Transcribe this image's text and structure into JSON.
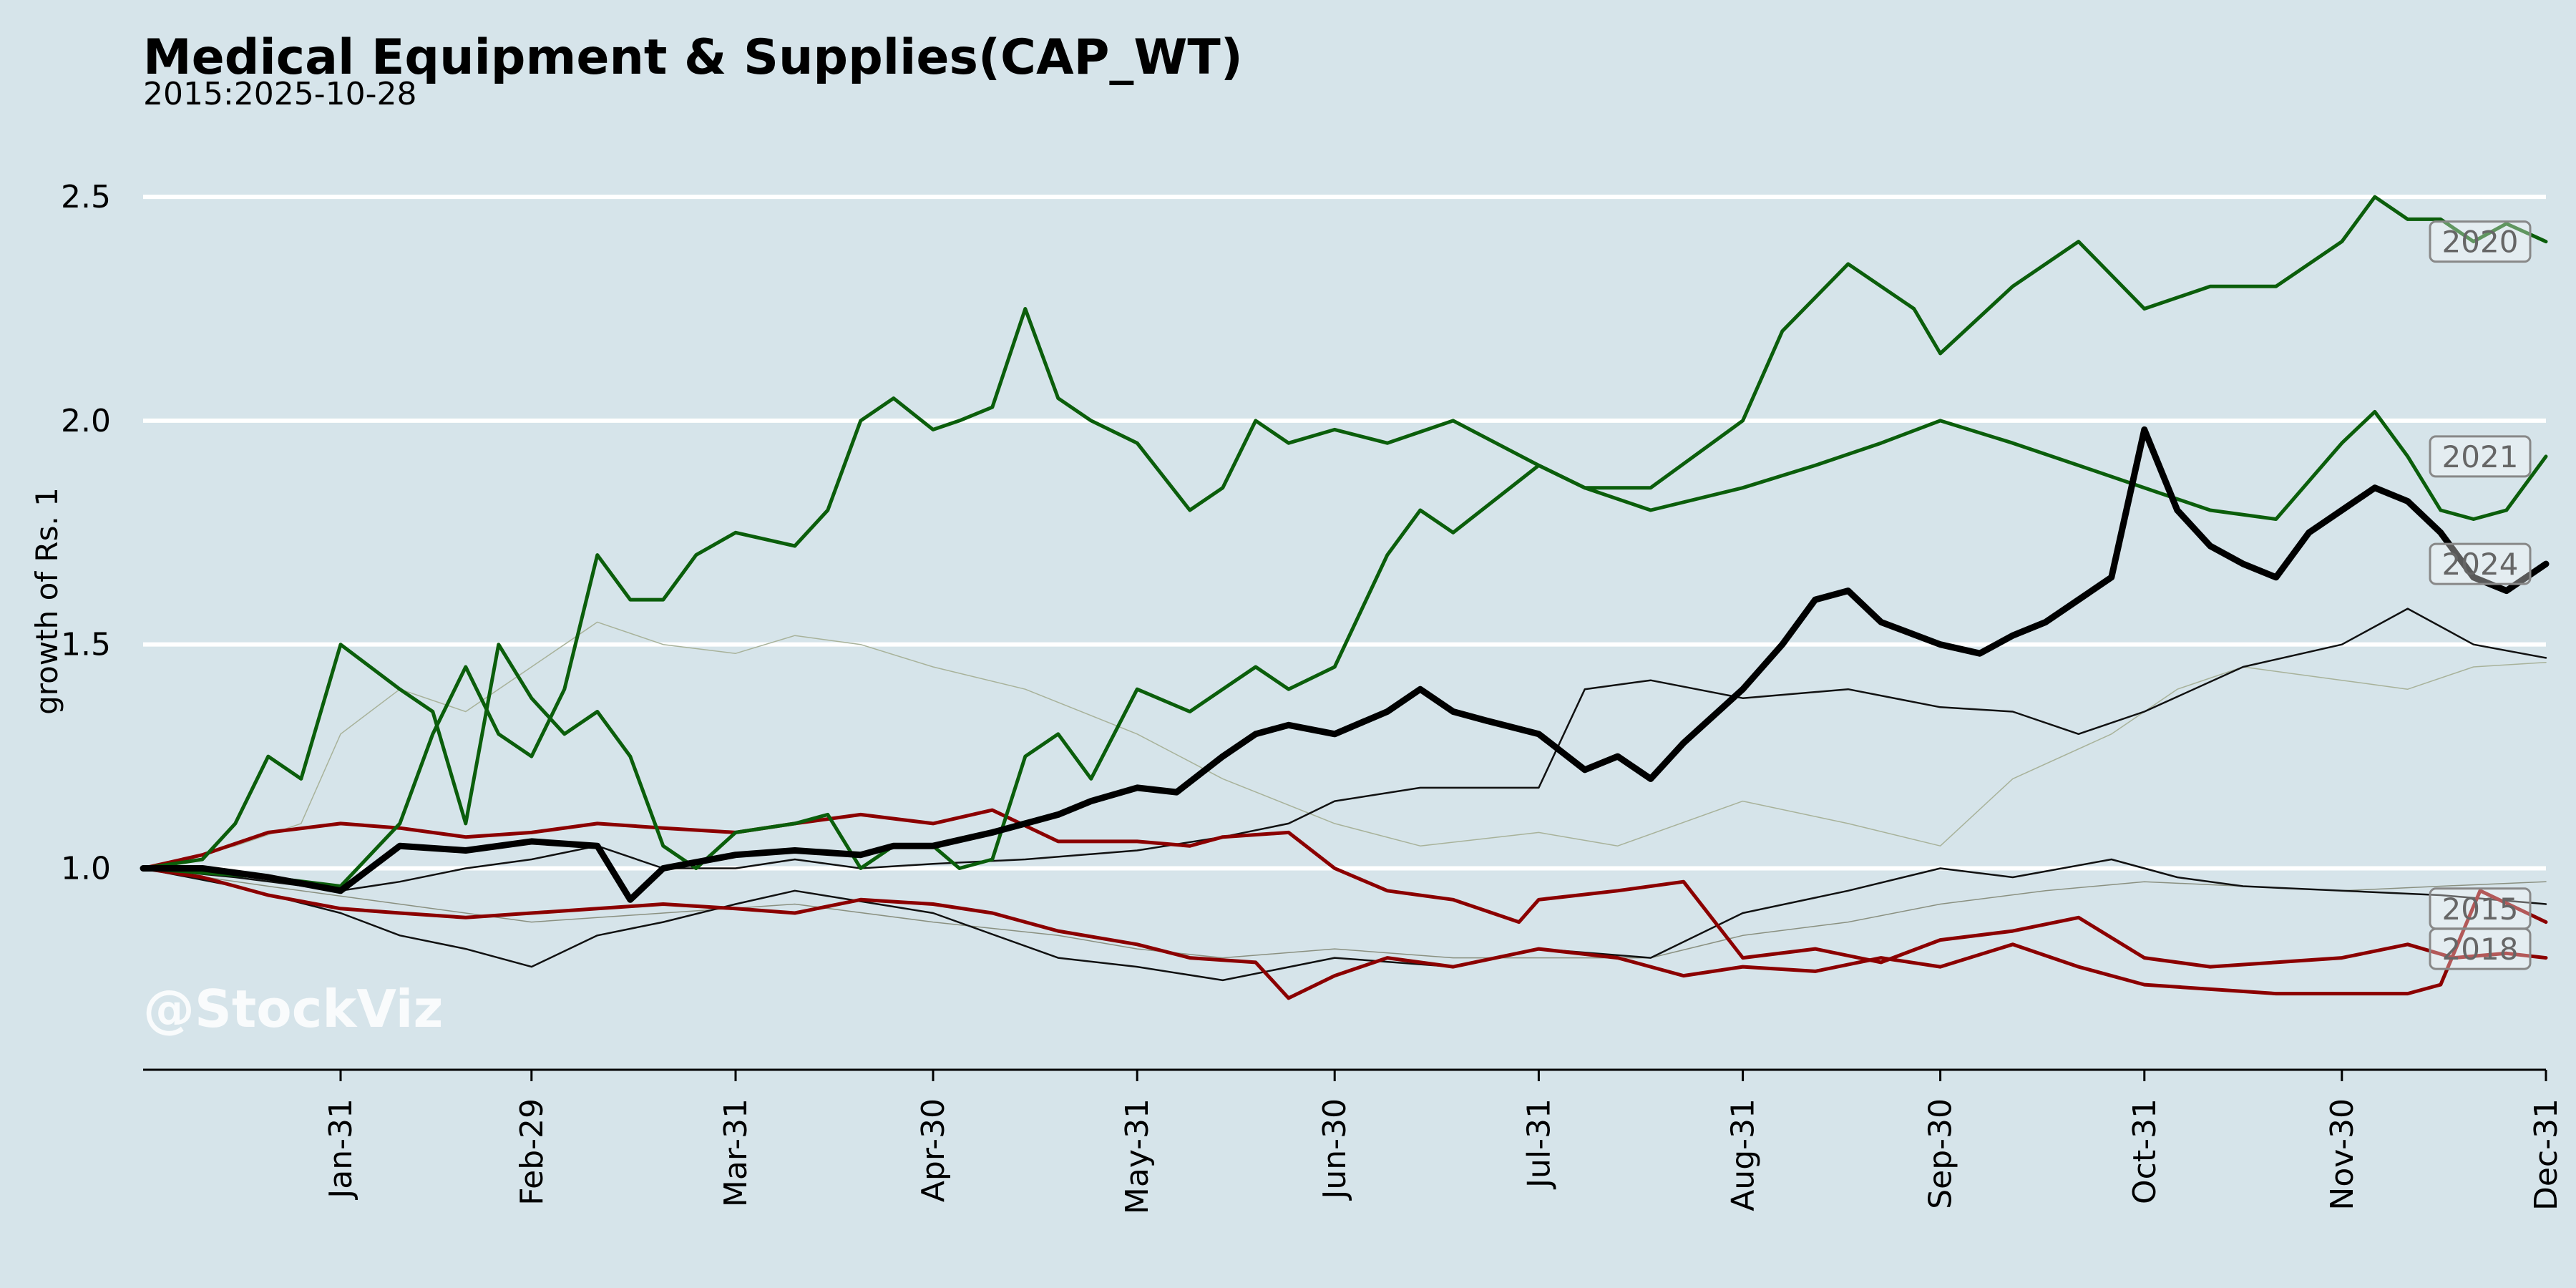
{
  "title": "Medical Equipment & Supplies(CAP_WT)",
  "subtitle": "2015:2025-10-28",
  "watermark": "@StockViz",
  "chart_data": {
    "type": "line",
    "title": "Medical Equipment & Supplies(CAP_WT)",
    "subtitle": "2015:2025-10-28",
    "ylabel": "growth of Rs. 1",
    "xlabel": "",
    "ylim": [
      0.55,
      2.62
    ],
    "yticks": [
      1.0,
      1.5,
      2.0,
      2.5
    ],
    "ytick_labels": [
      "1.0",
      "1.5",
      "2.0",
      "2.5"
    ],
    "xlim": [
      1,
      366
    ],
    "xticks": [
      31,
      60,
      91,
      121,
      152,
      182,
      213,
      244,
      274,
      305,
      335,
      366
    ],
    "xtick_labels": [
      "Jan-31",
      "Feb-29",
      "Mar-31",
      "Apr-30",
      "May-31",
      "Jun-30",
      "Jul-31",
      "Aug-31",
      "Sep-30",
      "Oct-31",
      "Nov-30",
      "Dec-31"
    ],
    "grid": "horizontal",
    "year_labels": [
      {
        "text": "2020",
        "y": 2.4
      },
      {
        "text": "2021",
        "y": 1.92
      },
      {
        "text": "2024",
        "y": 1.68
      },
      {
        "text": "2015",
        "y": 0.91
      },
      {
        "text": "2018",
        "y": 0.82
      }
    ],
    "series": [
      {
        "color": "#a8b29a",
        "width": 1.5,
        "x": [
          1,
          15,
          25,
          31,
          40,
          50,
          60,
          70,
          80,
          91,
          100,
          110,
          121,
          135,
          152,
          165,
          182,
          195,
          213,
          225,
          244,
          260,
          274,
          285,
          300,
          310,
          320,
          335,
          345,
          355,
          366
        ],
        "y": [
          1.0,
          1.05,
          1.1,
          1.3,
          1.4,
          1.35,
          1.45,
          1.55,
          1.5,
          1.48,
          1.52,
          1.5,
          1.45,
          1.4,
          1.3,
          1.2,
          1.1,
          1.05,
          1.08,
          1.05,
          1.15,
          1.1,
          1.05,
          1.2,
          1.3,
          1.4,
          1.45,
          1.42,
          1.4,
          1.45,
          1.46
        ]
      },
      {
        "color": "#8a9080",
        "width": 1.5,
        "x": [
          1,
          20,
          40,
          60,
          80,
          100,
          121,
          140,
          152,
          165,
          182,
          200,
          213,
          230,
          244,
          260,
          274,
          290,
          305,
          320,
          335,
          350,
          366
        ],
        "y": [
          1.0,
          0.96,
          0.92,
          0.88,
          0.9,
          0.92,
          0.88,
          0.85,
          0.82,
          0.8,
          0.82,
          0.8,
          0.8,
          0.8,
          0.85,
          0.88,
          0.92,
          0.95,
          0.97,
          0.96,
          0.95,
          0.96,
          0.97
        ]
      },
      {
        "color": "#111111",
        "width": 2.5,
        "x": [
          1,
          15,
          31,
          40,
          50,
          60,
          70,
          80,
          91,
          100,
          110,
          121,
          135,
          152,
          165,
          175,
          182,
          195,
          213,
          220,
          230,
          244,
          260,
          274,
          285,
          295,
          305,
          320,
          335,
          345,
          355,
          366
        ],
        "y": [
          1.0,
          0.98,
          0.95,
          0.97,
          1.0,
          1.02,
          1.05,
          1.0,
          1.0,
          1.02,
          1.0,
          1.01,
          1.02,
          1.04,
          1.07,
          1.1,
          1.15,
          1.18,
          1.18,
          1.4,
          1.42,
          1.38,
          1.4,
          1.36,
          1.35,
          1.3,
          1.35,
          1.45,
          1.5,
          1.58,
          1.5,
          1.47
        ]
      },
      {
        "color": "#111111",
        "width": 2.5,
        "x": [
          1,
          15,
          31,
          40,
          50,
          60,
          70,
          80,
          91,
          100,
          121,
          140,
          152,
          165,
          182,
          200,
          213,
          230,
          244,
          260,
          274,
          285,
          300,
          310,
          320,
          335,
          350,
          366
        ],
        "y": [
          1.0,
          0.96,
          0.9,
          0.85,
          0.82,
          0.78,
          0.85,
          0.88,
          0.92,
          0.95,
          0.9,
          0.8,
          0.78,
          0.75,
          0.8,
          0.78,
          0.82,
          0.8,
          0.9,
          0.95,
          1.0,
          0.98,
          1.02,
          0.98,
          0.96,
          0.95,
          0.94,
          0.92
        ]
      },
      {
        "color": "#8b0000",
        "width": 5,
        "x": [
          1,
          10,
          20,
          31,
          40,
          50,
          60,
          70,
          80,
          91,
          100,
          110,
          121,
          130,
          140,
          152,
          160,
          170,
          175,
          182,
          190,
          200,
          213,
          225,
          235,
          244,
          255,
          265,
          274,
          285,
          295,
          305,
          315,
          325,
          335,
          345,
          350,
          356,
          366
        ],
        "y": [
          1.0,
          0.98,
          0.94,
          0.91,
          0.9,
          0.89,
          0.9,
          0.91,
          0.92,
          0.91,
          0.9,
          0.93,
          0.92,
          0.9,
          0.86,
          0.83,
          0.8,
          0.79,
          0.71,
          0.76,
          0.8,
          0.78,
          0.82,
          0.8,
          0.76,
          0.78,
          0.77,
          0.8,
          0.78,
          0.83,
          0.78,
          0.74,
          0.73,
          0.72,
          0.72,
          0.72,
          0.74,
          0.95,
          0.88
        ]
      },
      {
        "color": "#8b0000",
        "width": 5,
        "x": [
          1,
          10,
          20,
          31,
          40,
          50,
          60,
          70,
          80,
          91,
          100,
          110,
          121,
          130,
          140,
          152,
          160,
          165,
          175,
          182,
          190,
          200,
          210,
          213,
          225,
          235,
          244,
          255,
          265,
          274,
          285,
          295,
          305,
          315,
          325,
          335,
          345,
          352,
          360,
          366
        ],
        "y": [
          1.0,
          1.03,
          1.08,
          1.1,
          1.09,
          1.07,
          1.08,
          1.1,
          1.09,
          1.08,
          1.1,
          1.12,
          1.1,
          1.13,
          1.06,
          1.06,
          1.05,
          1.07,
          1.08,
          1.0,
          0.95,
          0.93,
          0.88,
          0.93,
          0.95,
          0.97,
          0.8,
          0.82,
          0.79,
          0.84,
          0.86,
          0.89,
          0.8,
          0.78,
          0.79,
          0.8,
          0.83,
          0.8,
          0.81,
          0.8
        ]
      },
      {
        "color": "#0b5e0b",
        "width": 5,
        "x": [
          1,
          10,
          15,
          20,
          25,
          31,
          40,
          45,
          50,
          55,
          60,
          65,
          70,
          75,
          80,
          85,
          91,
          100,
          105,
          110,
          115,
          121,
          125,
          130,
          135,
          140,
          145,
          152,
          160,
          165,
          170,
          175,
          182,
          190,
          195,
          200,
          213,
          220,
          230,
          244,
          250,
          260,
          270,
          274,
          285,
          295,
          305,
          315,
          325,
          335,
          340,
          345,
          350,
          355,
          360,
          366
        ],
        "y": [
          1.0,
          1.02,
          1.1,
          1.25,
          1.2,
          1.5,
          1.4,
          1.35,
          1.1,
          1.5,
          1.38,
          1.3,
          1.35,
          1.25,
          1.05,
          1.0,
          1.08,
          1.1,
          1.12,
          1.0,
          1.05,
          1.05,
          1.0,
          1.02,
          1.25,
          1.3,
          1.2,
          1.4,
          1.35,
          1.4,
          1.45,
          1.4,
          1.45,
          1.7,
          1.8,
          1.75,
          1.9,
          1.85,
          1.85,
          2.0,
          2.2,
          2.35,
          2.25,
          2.15,
          2.3,
          2.4,
          2.25,
          2.3,
          2.3,
          2.4,
          2.5,
          2.45,
          2.45,
          2.4,
          2.44,
          2.4
        ]
      },
      {
        "color": "#0b5e0b",
        "width": 5,
        "x": [
          1,
          10,
          20,
          31,
          40,
          45,
          50,
          55,
          60,
          65,
          70,
          75,
          80,
          85,
          91,
          100,
          105,
          110,
          115,
          121,
          125,
          130,
          135,
          140,
          145,
          152,
          160,
          165,
          170,
          175,
          182,
          190,
          200,
          213,
          220,
          230,
          244,
          255,
          265,
          274,
          285,
          295,
          305,
          315,
          325,
          335,
          340,
          345,
          350,
          355,
          360,
          366
        ],
        "y": [
          1.0,
          0.99,
          0.98,
          0.96,
          1.1,
          1.3,
          1.45,
          1.3,
          1.25,
          1.4,
          1.7,
          1.6,
          1.6,
          1.7,
          1.75,
          1.72,
          1.8,
          2.0,
          2.05,
          1.98,
          2.0,
          2.03,
          2.25,
          2.05,
          2.0,
          1.95,
          1.8,
          1.85,
          2.0,
          1.95,
          1.98,
          1.95,
          2.0,
          1.9,
          1.85,
          1.8,
          1.85,
          1.9,
          1.95,
          2.0,
          1.95,
          1.9,
          1.85,
          1.8,
          1.78,
          1.95,
          2.02,
          1.92,
          1.8,
          1.78,
          1.8,
          1.92
        ]
      },
      {
        "color": "#000000",
        "width": 9,
        "x": [
          1,
          10,
          20,
          31,
          40,
          50,
          60,
          70,
          75,
          80,
          91,
          100,
          110,
          115,
          121,
          130,
          135,
          140,
          145,
          152,
          158,
          165,
          170,
          175,
          182,
          190,
          195,
          200,
          205,
          213,
          220,
          225,
          230,
          235,
          244,
          250,
          255,
          260,
          265,
          274,
          280,
          285,
          290,
          295,
          300,
          305,
          310,
          315,
          320,
          325,
          330,
          335,
          340,
          345,
          350,
          355,
          360,
          366
        ],
        "y": [
          1.0,
          1.0,
          0.98,
          0.95,
          1.05,
          1.04,
          1.06,
          1.05,
          0.93,
          1.0,
          1.03,
          1.04,
          1.03,
          1.05,
          1.05,
          1.08,
          1.1,
          1.12,
          1.15,
          1.18,
          1.17,
          1.25,
          1.3,
          1.32,
          1.3,
          1.35,
          1.4,
          1.35,
          1.33,
          1.3,
          1.22,
          1.25,
          1.2,
          1.28,
          1.4,
          1.5,
          1.6,
          1.62,
          1.55,
          1.5,
          1.48,
          1.52,
          1.55,
          1.6,
          1.65,
          1.98,
          1.8,
          1.72,
          1.68,
          1.65,
          1.75,
          1.8,
          1.85,
          1.82,
          1.75,
          1.65,
          1.62,
          1.68
        ]
      }
    ]
  }
}
